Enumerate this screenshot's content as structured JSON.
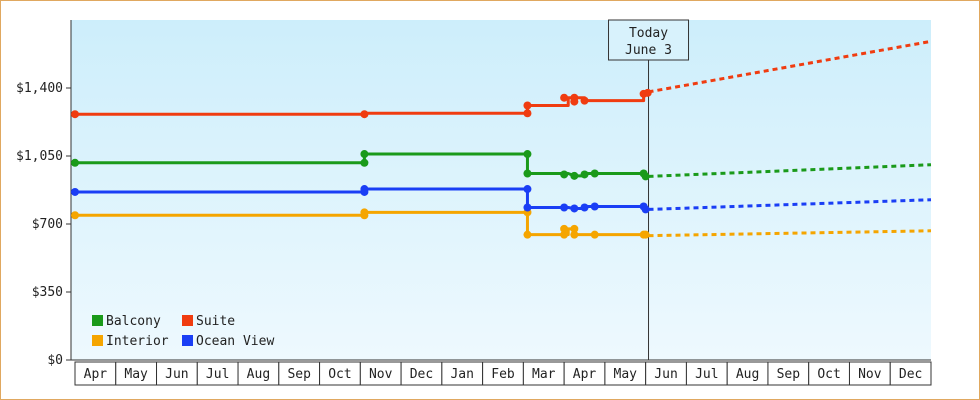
{
  "chart_data": {
    "type": "line",
    "title": "",
    "xlabel": "",
    "ylabel": "",
    "ylim": [
      0,
      1750
    ],
    "yticks": [
      {
        "value": 0,
        "label": "$0"
      },
      {
        "value": 350,
        "label": "$350"
      },
      {
        "value": 700,
        "label": "$700"
      },
      {
        "value": 1050,
        "label": "$1,050"
      },
      {
        "value": 1400,
        "label": "$1,400"
      }
    ],
    "x_start": "Apr 1",
    "x_end": "Dec 31 (following year)",
    "months": [
      "Apr",
      "May",
      "Jun",
      "Jul",
      "Aug",
      "Sep",
      "Oct",
      "Nov",
      "Dec",
      "Jan",
      "Feb",
      "Mar",
      "Apr",
      "May",
      "Jun",
      "Jul",
      "Aug",
      "Sep",
      "Oct",
      "Nov",
      "Dec"
    ],
    "today_marker": {
      "line1": "Today",
      "line2": "June 3",
      "month_index": 14.07
    },
    "grid": false,
    "legend_position": "bottom-left",
    "background": [
      "#cdeefb",
      "#eef9fe"
    ],
    "series": [
      {
        "name": "Balcony",
        "color": "#1a9a1a",
        "points": [
          [
            0.0,
            1015
          ],
          [
            7.1,
            1015
          ],
          [
            7.1,
            1060
          ],
          [
            11.1,
            1060
          ],
          [
            11.1,
            960
          ],
          [
            12.1,
            960
          ],
          [
            12.25,
            948
          ],
          [
            12.5,
            948
          ],
          [
            12.5,
            960
          ],
          [
            12.75,
            960
          ],
          [
            13.95,
            960
          ],
          [
            14.0,
            945
          ],
          [
            14.07,
            945
          ]
        ],
        "forecast": [
          [
            14.07,
            945
          ],
          [
            21.0,
            1005
          ]
        ],
        "markers": [
          [
            0.0,
            1015
          ],
          [
            7.1,
            1015
          ],
          [
            7.1,
            1060
          ],
          [
            11.1,
            1060
          ],
          [
            11.1,
            960
          ],
          [
            12.0,
            955
          ],
          [
            12.25,
            948
          ],
          [
            12.5,
            955
          ],
          [
            12.75,
            960
          ],
          [
            13.95,
            960
          ],
          [
            14.0,
            945
          ]
        ]
      },
      {
        "name": "Suite",
        "color": "#f03c10",
        "points": [
          [
            0.0,
            1265
          ],
          [
            7.1,
            1265
          ],
          [
            7.1,
            1270
          ],
          [
            11.1,
            1270
          ],
          [
            11.1,
            1310
          ],
          [
            12.1,
            1310
          ],
          [
            12.1,
            1350
          ],
          [
            12.5,
            1350
          ],
          [
            12.5,
            1335
          ],
          [
            13.95,
            1335
          ],
          [
            13.95,
            1370
          ],
          [
            14.07,
            1370
          ]
        ],
        "forecast": [
          [
            14.07,
            1380
          ],
          [
            21.0,
            1640
          ]
        ],
        "markers": [
          [
            0.0,
            1265
          ],
          [
            7.1,
            1265
          ],
          [
            11.1,
            1270
          ],
          [
            11.1,
            1310
          ],
          [
            12.0,
            1350
          ],
          [
            12.25,
            1350
          ],
          [
            12.25,
            1330
          ],
          [
            12.5,
            1335
          ],
          [
            13.95,
            1370
          ],
          [
            14.05,
            1375
          ]
        ]
      },
      {
        "name": "Interior",
        "color": "#f5a500",
        "points": [
          [
            0.0,
            745
          ],
          [
            7.1,
            745
          ],
          [
            7.1,
            760
          ],
          [
            11.1,
            760
          ],
          [
            11.1,
            645
          ],
          [
            12.1,
            645
          ],
          [
            12.1,
            675
          ],
          [
            12.25,
            675
          ],
          [
            12.25,
            645
          ],
          [
            13.95,
            645
          ],
          [
            14.07,
            645
          ]
        ],
        "forecast": [
          [
            14.07,
            640
          ],
          [
            21.0,
            665
          ]
        ],
        "markers": [
          [
            0.0,
            745
          ],
          [
            7.1,
            745
          ],
          [
            7.1,
            760
          ],
          [
            11.1,
            760
          ],
          [
            11.1,
            645
          ],
          [
            12.0,
            645
          ],
          [
            12.0,
            675
          ],
          [
            12.25,
            675
          ],
          [
            12.25,
            645
          ],
          [
            12.75,
            645
          ],
          [
            13.95,
            645
          ],
          [
            14.0,
            645
          ]
        ]
      },
      {
        "name": "Ocean View",
        "color": "#1a3ef5",
        "points": [
          [
            0.0,
            865
          ],
          [
            7.1,
            865
          ],
          [
            7.1,
            880
          ],
          [
            11.1,
            880
          ],
          [
            11.1,
            785
          ],
          [
            12.1,
            785
          ],
          [
            12.25,
            780
          ],
          [
            12.5,
            780
          ],
          [
            12.5,
            790
          ],
          [
            13.95,
            790
          ],
          [
            14.0,
            775
          ],
          [
            14.07,
            775
          ]
        ],
        "forecast": [
          [
            14.07,
            775
          ],
          [
            21.0,
            825
          ]
        ],
        "markers": [
          [
            0.0,
            865
          ],
          [
            7.1,
            865
          ],
          [
            7.1,
            880
          ],
          [
            11.1,
            880
          ],
          [
            11.1,
            785
          ],
          [
            12.0,
            785
          ],
          [
            12.25,
            780
          ],
          [
            12.5,
            785
          ],
          [
            12.75,
            790
          ],
          [
            13.95,
            790
          ],
          [
            14.0,
            775
          ]
        ]
      }
    ]
  }
}
